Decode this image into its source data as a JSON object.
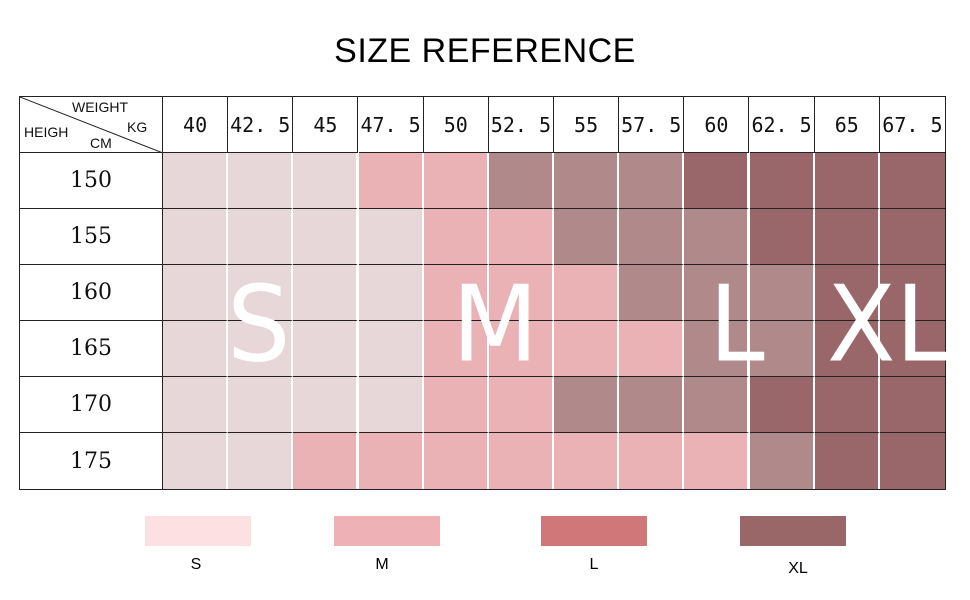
{
  "title": "SIZE REFERENCE",
  "corner": {
    "weight": "WEIGHT",
    "kg": "KG",
    "height": "HEIGH",
    "cm": "CM"
  },
  "weights": [
    "40",
    "42.5",
    "45",
    "47.5",
    "50",
    "52.5",
    "55",
    "57.5",
    "60",
    "62.5",
    "65",
    "67.5"
  ],
  "heights": [
    "150",
    "155",
    "160",
    "165",
    "170",
    "175"
  ],
  "colors": {
    "S": "#e7d7d8",
    "M": "#ebb2b5",
    "L": "#b08a8b",
    "XL": "#996769"
  },
  "legend_colors": {
    "S": "#fde0e1",
    "M": "#eeb1b5",
    "L": "#d07879",
    "XL": "#9a6769"
  },
  "grid_sizes": [
    [
      "S",
      "S",
      "S",
      "M",
      "M",
      "L",
      "L",
      "L",
      "XL",
      "XL",
      "XL",
      "XL"
    ],
    [
      "S",
      "S",
      "S",
      "S",
      "M",
      "M",
      "L",
      "L",
      "L",
      "XL",
      "XL",
      "XL"
    ],
    [
      "S",
      "S",
      "S",
      "S",
      "M",
      "M",
      "M",
      "L",
      "L",
      "L",
      "XL",
      "XL"
    ],
    [
      "S",
      "S",
      "S",
      "S",
      "M",
      "M",
      "M",
      "M",
      "L",
      "L",
      "XL",
      "XL"
    ],
    [
      "S",
      "S",
      "S",
      "S",
      "M",
      "M",
      "L",
      "L",
      "L",
      "XL",
      "XL",
      "XL"
    ],
    [
      "S",
      "S",
      "M",
      "M",
      "M",
      "M",
      "M",
      "M",
      "M",
      "L",
      "XL",
      "XL"
    ]
  ],
  "big_labels": [
    "S",
    "M",
    "L",
    "XL"
  ],
  "legend": [
    {
      "key": "S",
      "label": "S"
    },
    {
      "key": "M",
      "label": "M"
    },
    {
      "key": "L",
      "label": "L"
    },
    {
      "key": "XL",
      "label": "XL"
    }
  ]
}
